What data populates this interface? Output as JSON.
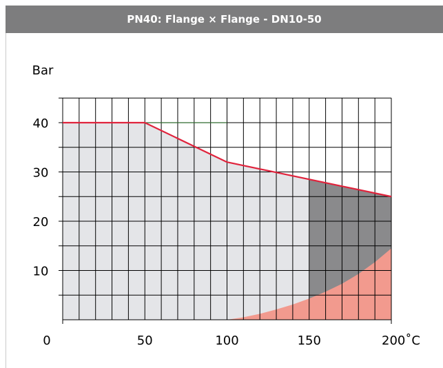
{
  "header": {
    "title": "PN40:  Flange × Flange - DN10-50"
  },
  "colors": {
    "grid": "#000000",
    "fill_light": "#e4e5e8",
    "fill_dark": "#8a8a8c",
    "fill_red": "#f29a8e",
    "limit_line": "#e0233c",
    "reference_line": "#2e6b2e"
  },
  "chart_data": {
    "type": "area",
    "title": "",
    "ylabel": "Bar",
    "xlabel": "",
    "xlim": [
      0,
      200
    ],
    "ylim": [
      0,
      45
    ],
    "x_ticks": [
      {
        "value": 0,
        "label": "0"
      },
      {
        "value": 50,
        "label": "50"
      },
      {
        "value": 100,
        "label": "100"
      },
      {
        "value": 150,
        "label": "150"
      },
      {
        "value": 200,
        "label": "200˚C"
      }
    ],
    "y_ticks": [
      {
        "value": 10,
        "label": "10"
      },
      {
        "value": 20,
        "label": "20"
      },
      {
        "value": 30,
        "label": "30"
      },
      {
        "value": 40,
        "label": "40"
      }
    ],
    "grid": {
      "x_step": 10,
      "y_step": 5
    },
    "pressure_limit": {
      "x": [
        0,
        50,
        100,
        200
      ],
      "y": [
        40,
        40,
        32,
        25
      ]
    },
    "reference_line": {
      "x": [
        50,
        100
      ],
      "y": [
        40,
        40
      ]
    },
    "dark_region_start_x": 150,
    "red_region_curve": {
      "x": [
        100,
        110,
        120,
        130,
        140,
        150,
        160,
        170,
        180,
        190,
        200
      ],
      "y": [
        0,
        0.5,
        1.2,
        2.1,
        3.1,
        4.3,
        5.7,
        7.3,
        9.3,
        11.7,
        14.5
      ]
    }
  }
}
